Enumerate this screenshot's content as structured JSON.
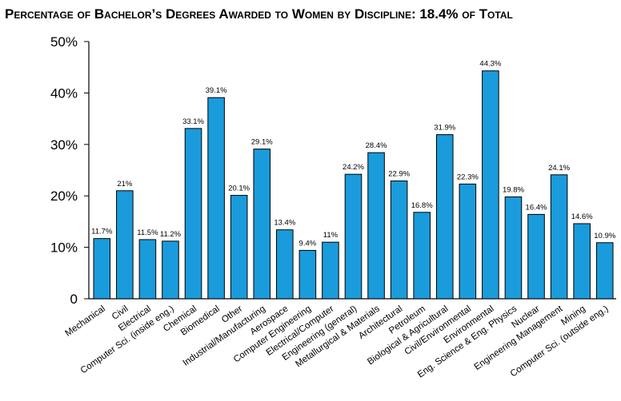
{
  "chart_data": {
    "type": "bar",
    "title": "Percentage of Bachelor’s Degrees Awarded to Women by Discipline: 18.4% of Total",
    "xlabel": "",
    "ylabel": "",
    "ylim": [
      0,
      50
    ],
    "y_ticks": [
      "0",
      "10%",
      "20%",
      "30%",
      "40%",
      "50%"
    ],
    "grid": false,
    "bar_color": "#1a9bdb",
    "categories": [
      "Mechanical",
      "Civil",
      "Electrical",
      "Computer Sci. (inside eng.)",
      "Chemical",
      "Biomedical",
      "Other",
      "Industrial/Manufacturing",
      "Aerospace",
      "Computer Engineering",
      "Electrical/Computer",
      "Engineering (general)",
      "Metallurgical & Materials",
      "Architectural",
      "Petroleum",
      "Biological & Agricultural",
      "Civil/Environmental",
      "Environmental",
      "Eng. Science & Eng. Physics",
      "Nuclear",
      "Engineering Management",
      "Mining",
      "Computer Sci. (outside eng.)"
    ],
    "values": [
      11.7,
      21,
      11.5,
      11.2,
      33.1,
      39.1,
      20.1,
      29.1,
      13.4,
      9.4,
      11,
      24.2,
      28.4,
      22.9,
      16.8,
      31.9,
      22.3,
      44.3,
      19.8,
      16.4,
      24.1,
      14.6,
      10.9
    ],
    "data_labels": [
      "11.7%",
      "21%",
      "11.5%",
      "11.2%",
      "33.1%",
      "39.1%",
      "20.1%",
      "29.1%",
      "13.4%",
      "9.4%",
      "11%",
      "24.2%",
      "28.4%",
      "22.9%",
      "16.8%",
      "31.9%",
      "22.3%",
      "44.3%",
      "19.8%",
      "16.4%",
      "24.1%",
      "14.6%",
      "10.9%"
    ]
  }
}
